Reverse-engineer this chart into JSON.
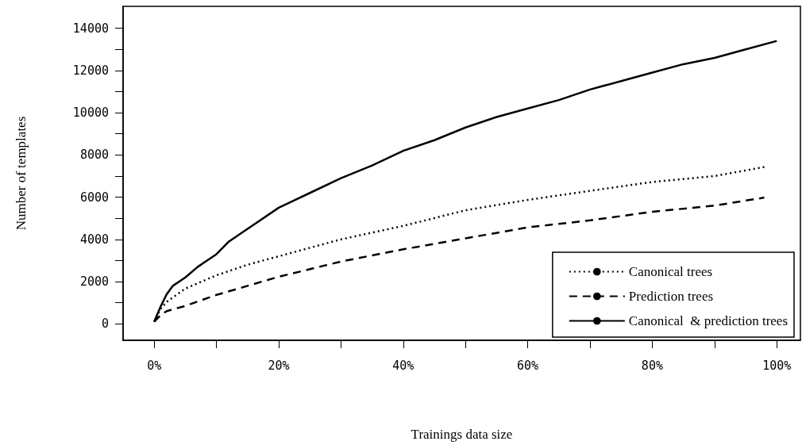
{
  "chart_data": {
    "type": "line",
    "xlabel": "Trainings data size",
    "ylabel": "Number of templates",
    "xlim": [
      -5,
      103.8
    ],
    "ylim": [
      -780,
      15040
    ],
    "xticks": [
      {
        "value": 0,
        "label": "0%"
      },
      {
        "value": 10,
        "label": null
      },
      {
        "value": 20,
        "label": "20%"
      },
      {
        "value": 30,
        "label": null
      },
      {
        "value": 40,
        "label": "40%"
      },
      {
        "value": 50,
        "label": null
      },
      {
        "value": 60,
        "label": "60%"
      },
      {
        "value": 70,
        "label": null
      },
      {
        "value": 80,
        "label": "80%"
      },
      {
        "value": 90,
        "label": null
      },
      {
        "value": 100,
        "label": "100%"
      }
    ],
    "yticks": [
      0,
      {
        "value": 1000,
        "label": null
      },
      2000,
      {
        "value": 3000,
        "label": null
      },
      4000,
      {
        "value": 5000,
        "label": null
      },
      6000,
      {
        "value": 7000,
        "label": null
      },
      8000,
      {
        "value": 9000,
        "label": null
      },
      10000,
      {
        "value": 11000,
        "label": null
      },
      12000,
      {
        "value": 13000,
        "label": null
      },
      14000
    ],
    "grid": false,
    "legend": "bottom right",
    "marker": "none",
    "series": [
      {
        "name": "Canonical trees",
        "color": "#000000",
        "line_style": "dotted",
        "x": [
          0,
          1,
          2,
          5,
          10,
          15,
          20,
          30,
          40,
          50,
          60,
          70,
          80,
          90,
          98
        ],
        "values": [
          100,
          700,
          1040,
          1670,
          2300,
          2800,
          3200,
          4000,
          4640,
          5380,
          5870,
          6300,
          6720,
          7000,
          7430
        ]
      },
      {
        "name": "Prediction trees",
        "color": "#000000",
        "line_style": "dashed",
        "x": [
          0,
          1,
          2,
          5,
          10,
          15,
          20,
          30,
          40,
          50,
          60,
          70,
          80,
          90,
          98
        ],
        "values": [
          100,
          400,
          600,
          850,
          1370,
          1800,
          2230,
          2950,
          3530,
          4050,
          4570,
          4900,
          5310,
          5600,
          5980
        ]
      },
      {
        "name": "Canonical  & prediction trees",
        "color": "#000000",
        "line_style": "solid",
        "x": [
          0,
          1,
          2,
          3,
          5,
          7,
          10,
          12,
          15,
          20,
          25,
          30,
          35,
          40,
          45,
          50,
          55,
          60,
          65,
          70,
          75,
          80,
          85,
          90,
          95,
          100
        ],
        "values": [
          100,
          800,
          1400,
          1800,
          2200,
          2700,
          3300,
          3900,
          4500,
          5500,
          6200,
          6900,
          7500,
          8200,
          8700,
          9300,
          9800,
          10200,
          10600,
          11100,
          11500,
          11900,
          12300,
          12600,
          13000,
          13400
        ]
      }
    ]
  }
}
